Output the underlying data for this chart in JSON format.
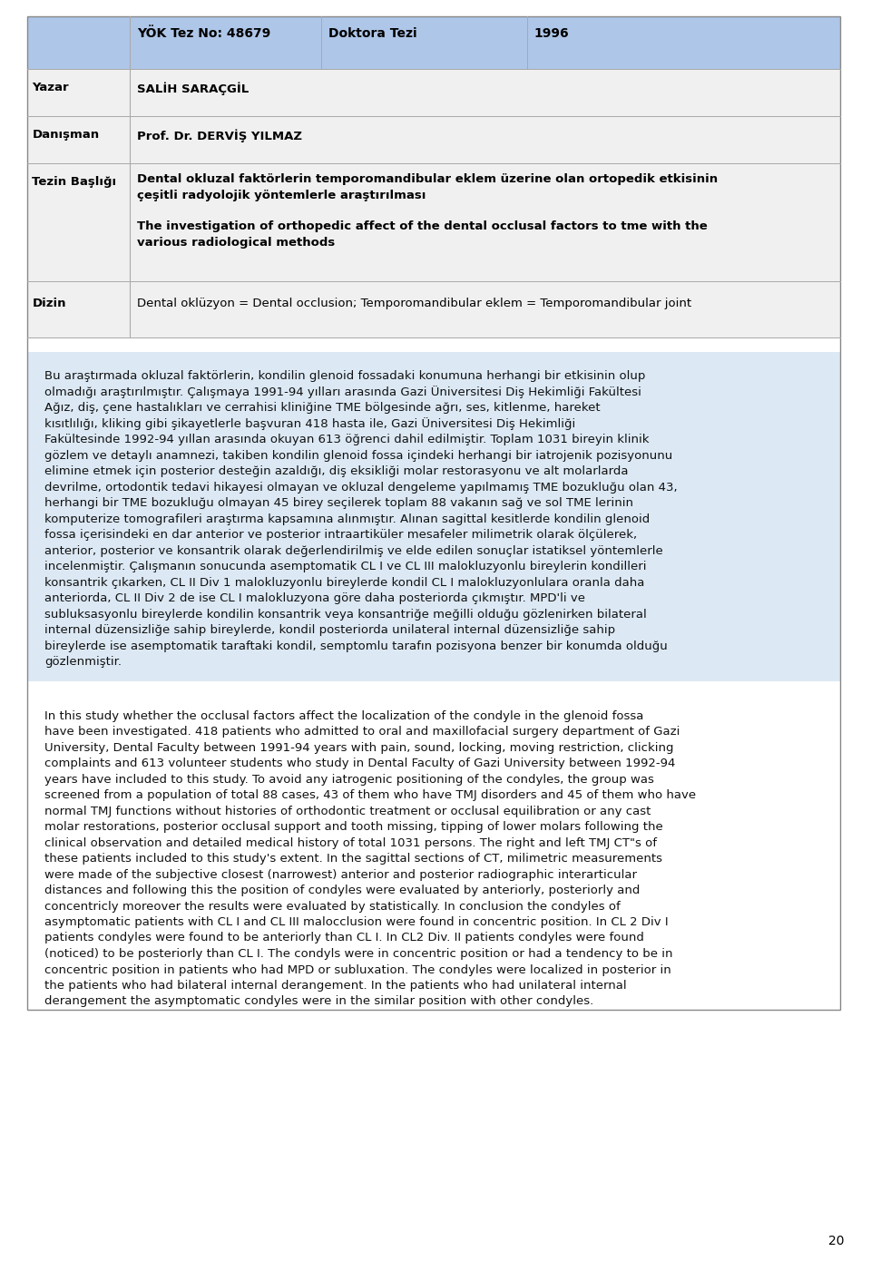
{
  "page_bg": "#ffffff",
  "header_bg": "#aec6e8",
  "row_bg_alt": "#f0f0f0",
  "row_bg_white": "#ffffff",
  "body_bg": "#dce9f5",
  "border_color": "#999999",
  "header_cells": [
    {
      "text": "YÖK Tez No: 48679",
      "bold": true
    },
    {
      "text": "Doktora Tezi",
      "bold": true
    },
    {
      "text": "1996",
      "bold": true
    }
  ],
  "rows": [
    {
      "label": "Yazar",
      "label_bold": true,
      "content": "SALİH SARAÇGİL",
      "content_bold": true,
      "bg": "#f0f0f0"
    },
    {
      "label": "Danışman",
      "label_bold": true,
      "content": "Prof. Dr. DERVİŞ YILMAZ",
      "content_bold": true,
      "bg": "#f0f0f0"
    },
    {
      "label": "Tezin Başlığı",
      "label_bold": true,
      "content": "Dental okluzal faktörlerin temporomandibular eklem üzerine olan ortopedik etkisinin çeşitli radyolojik yöntemlerle araştırılması\n\nThe investigation of orthopedic affect of the dental occlusal factors to tme with the various radiological methods",
      "content_bold": false,
      "bg": "#f0f0f0"
    },
    {
      "label": "Dizin",
      "label_bold": true,
      "content": "Dental oklüzyon = Dental occlusion; Temporomandibular eklem = Temporomandibular joint",
      "content_bold": false,
      "bg": "#f0f0f0"
    }
  ],
  "turkish_abstract": "Bu araştırmada okluzal faktörlerin, kondilin glenoid fossadaki konumuna herhangi bir etkisinin olup olmadığı araştırılmıştır. Çalışmaya 1991-94 yılları arasında Gazi Üniversitesi Diş Hekimliği Fakültesi Ağız, diş, çene hastalıkları ve cerrahisi kliniğine TME bölgesinde ağrı, ses, kitlenme, hareket kısıtlılığı, kliking gibi şikayetlerle başvuran 418 hasta ile, Gazi Üniversitesi Diş Hekimliği Fakültesinde 1992-94 yıllan arasında okuyan 613 öğrenci dahil edilmiştir. Toplam 1031 bireyin klinik gözlem ve detaylı anamnezi, takiben kondilin glenoid fossa içindeki herhangi bir iatrojenik pozisyonunu elimine etmek için posterior desteğin azaldığı, diş eksikliği molar restorasyonu ve alt molarlarda devrilme, ortodontik tedavi hikayesi olmayan ve okluzal dengeleme yapılmamış TME bozukluğu olan 43, herhangi bir TME bozukluğu olmayan 45 birey seçilerek toplam 88 vakanın sağ ve sol TME lerinin komputerize tomografileri araştırma kapsamına alınmıştır. Alınan sagittal kesitlerde kondilin glenoid fossa içerisindeki en dar anterior ve posterior intraartiküler mesafeler milimetrik olarak ölçülerek, anterior, posterior ve konsantrik olarak değerlendirilmiş ve elde edilen sonuçlar istatiksel yöntemlerle incelenmiştir. Çalışmanın sonucunda asemptomatik CL I ve CL III malokluzyonlu bireylerin kondilleri konsantrik çıkarken, CL II Div 1 malokluzyonlu bireylerde kondil CL I malokluzyonlulara oranla daha anteriorda, CL II Div 2 de ise CL I malokluzyona göre daha posteriorda çıkmıştır. MPD'li ve subluksasyonlu bireylerde kondilin konsantrik veya konsantriğe meğilli olduğu gözlenirken bilateral internal düzensizliğe sahip bireylerde, kondil posteriorda unilateral internal düzensizliğe sahip bireylerde ise asemptomatik taraftaki kondil, semptomlu tarafın pozisyona benzer bir konumda olduğu gözlenmiştir.",
  "english_abstract": "In this study whether the occlusal factors affect the localization of the condyle in the glenoid fossa have been investigated. 418 patients who admitted to oral and maxillofacial surgery department of Gazi University, Dental Faculty between 1991-94 years with pain, sound, locking, moving restriction, clicking complaints and 613 volunteer students who study in Dental Faculty of Gazi University between 1992-94 years have included to this study. To avoid any iatrogenic positioning of the condyles, the group was screened from a population of total 88 cases, 43 of them who have TMJ disorders and 45 of them who have normal TMJ functions without histories of orthodontic treatment or occlusal equilibration or any cast molar restorations, posterior occlusal support and tooth missing, tipping of lower molars following the clinical observation and detailed medical history of total 1031 persons. The right and left TMJ CT\"s of these patients included to this study's extent. In the sagittal sections of CT, milimetric measurements were made of the subjective closest (narrowest) anterior and posterior radiographic interarticular distances and following this the position of condyles were evaluated by anteriorly, posteriorly and concentricly moreover the results were evaluated by statistically. In conclusion the condyles of asymptomatic patients with CL I and CL III malocclusion were found in concentric position. In CL 2 Div I patients condyles were found to be anteriorly than CL I. In CL2 Div. II patients condyles were found (noticed) to be posteriorly than CL I. The condyls were in concentric position or had a tendency to be in concentric position in patients who had MPD or subluxation. The condyles were localized in posterior in the patients who had bilateral internal derangement. In the patients who had unilateral internal derangement the asymptomatic condyles were in the similar position with other condyles.",
  "page_number": "20",
  "font_size_table": 9.5,
  "font_size_body": 9.5,
  "font_size_page": 10
}
